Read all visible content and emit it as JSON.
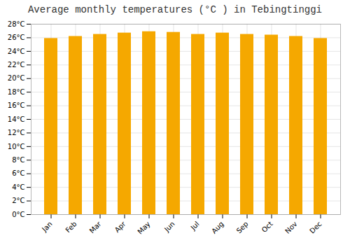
{
  "chart_data": {
    "type": "bar",
    "title": "Average monthly temperatures (°C ) in Tebingtinggi",
    "categories": [
      "Jan",
      "Feb",
      "Mar",
      "Apr",
      "May",
      "Jun",
      "Jul",
      "Aug",
      "Sep",
      "Oct",
      "Nov",
      "Dec"
    ],
    "values": [
      25.9,
      26.2,
      26.5,
      26.7,
      26.9,
      26.8,
      26.5,
      26.7,
      26.5,
      26.4,
      26.2,
      25.9
    ],
    "color": "#F5A800",
    "ylim": [
      0,
      28
    ],
    "yticks": [
      {
        "value": 0,
        "label": "0°C"
      },
      {
        "value": 2,
        "label": "2°C"
      },
      {
        "value": 4,
        "label": "4°C"
      },
      {
        "value": 6,
        "label": "6°C"
      },
      {
        "value": 8,
        "label": "8°C"
      },
      {
        "value": 10,
        "label": "10°C"
      },
      {
        "value": 12,
        "label": "12°C"
      },
      {
        "value": 14,
        "label": "14°C"
      },
      {
        "value": 16,
        "label": "16°C"
      },
      {
        "value": 18,
        "label": "18°C"
      },
      {
        "value": 20,
        "label": "20°C"
      },
      {
        "value": 22,
        "label": "22°C"
      },
      {
        "value": 24,
        "label": "24°C"
      },
      {
        "value": 26,
        "label": "26°C"
      },
      {
        "value": 28,
        "label": "28°C"
      }
    ],
    "grid": true
  }
}
